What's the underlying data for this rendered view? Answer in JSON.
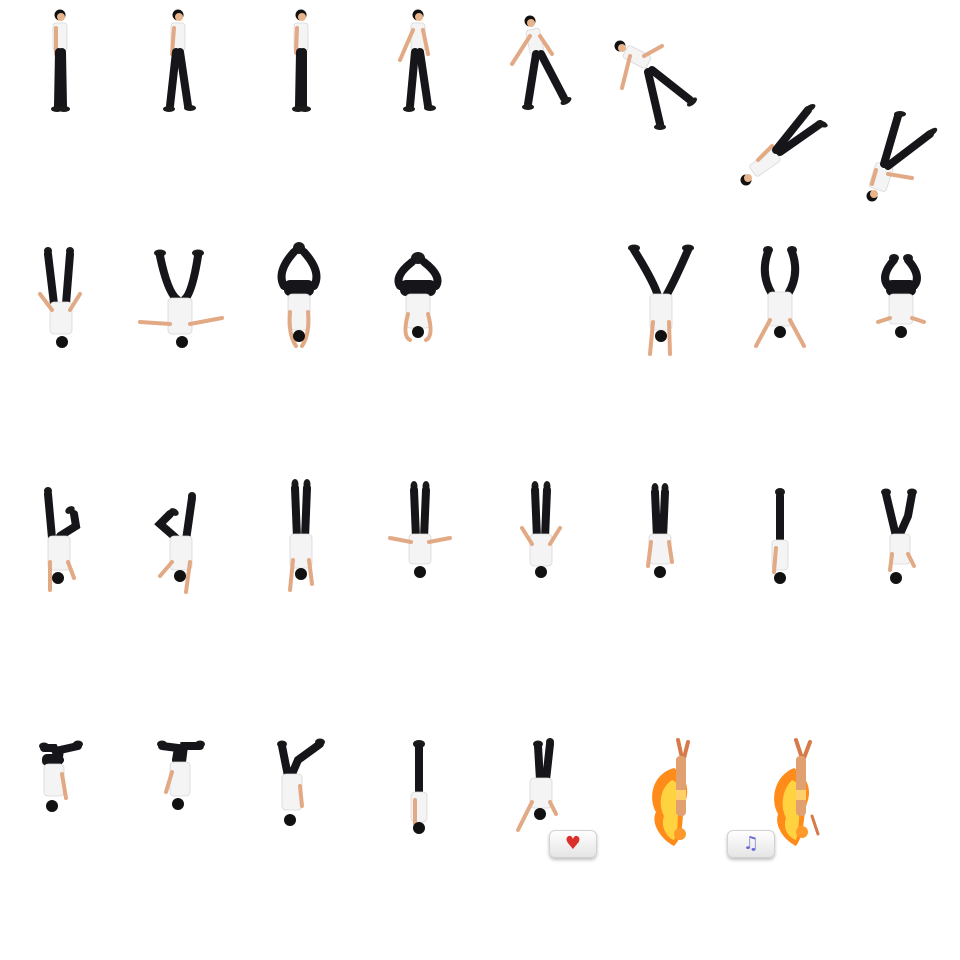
{
  "sprite_sheet": {
    "colors": {
      "background": "#ffffff",
      "shirt": "#f4f4f4",
      "pants": "#15151a",
      "skin": "#e8b48c",
      "hair": "#111111",
      "heart": "#d9302a",
      "music_note": "#6a6ad0",
      "flame_outer": "#ff8c1a",
      "flame_inner": "#ffd23f"
    },
    "rows": [
      {
        "row": 1,
        "frames": [
          "standing",
          "standing",
          "standing",
          "walking",
          "walking",
          "leaning-forward",
          "tilted-falling",
          "tilted-falling"
        ]
      },
      {
        "row": 2,
        "frames": [
          "handstand-arms-down",
          "handstand-arms-out",
          "inverted-hands-together",
          "inverted-hands-together",
          "handstand-legs-open",
          "handstand-legs-open",
          "inverted-hands-together"
        ]
      },
      {
        "row": 3,
        "frames": [
          "inverted-leg-bent",
          "inverted-leg-bent",
          "inverted-legs-straight",
          "inverted-arms-out",
          "inverted-arms-down",
          "inverted-legs-straight",
          "inverted-slim",
          "inverted-leg-bent"
        ]
      },
      {
        "row": 4,
        "frames": [
          "inverted-legs-split",
          "inverted-legs-split",
          "inverted-legs-split",
          "inverted-slim",
          "inverted-leg-bent",
          "flaming-dancer",
          "flaming-dancer"
        ]
      }
    ],
    "buttons": [
      {
        "icon": "heart-icon",
        "glyph": "♥"
      },
      {
        "icon": "music-note-icon",
        "glyph": "♫"
      }
    ]
  }
}
